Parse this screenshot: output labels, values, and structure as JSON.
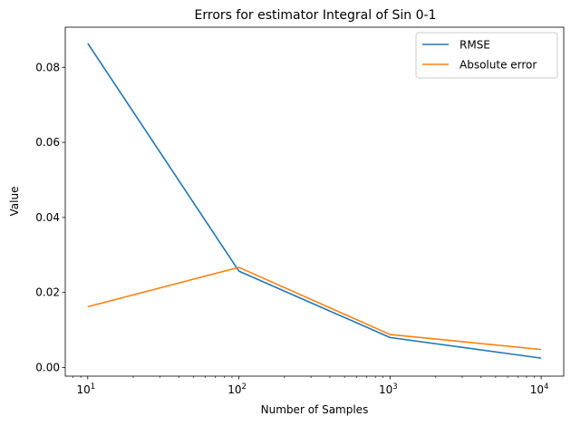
{
  "chart_data": {
    "type": "line",
    "title": "Errors for estimator Integral of Sin 0-1",
    "xlabel": "Number of Samples",
    "ylabel": "Value",
    "x_scale": "log",
    "xlim": [
      7.1,
      14100
    ],
    "ylim": [
      -0.0023,
      0.0907
    ],
    "grid": false,
    "legend_position": "top-right",
    "x": [
      10,
      100,
      1000,
      10000
    ],
    "x_ticks": [
      {
        "value": 10,
        "base": "10",
        "exp": "1"
      },
      {
        "value": 100,
        "base": "10",
        "exp": "2"
      },
      {
        "value": 1000,
        "base": "10",
        "exp": "3"
      },
      {
        "value": 10000,
        "base": "10",
        "exp": "4"
      }
    ],
    "y_ticks": [
      {
        "value": 0.0,
        "label": "0.00"
      },
      {
        "value": 0.02,
        "label": "0.02"
      },
      {
        "value": 0.04,
        "label": "0.04"
      },
      {
        "value": 0.06,
        "label": "0.06"
      },
      {
        "value": 0.08,
        "label": "0.08"
      }
    ],
    "series": [
      {
        "name": "RMSE",
        "color": "#1f77b4",
        "values": [
          0.0864,
          0.0257,
          0.008,
          0.0025
        ]
      },
      {
        "name": "Absolute error",
        "color": "#ff7f0e",
        "values": [
          0.0162,
          0.0267,
          0.0088,
          0.0048
        ]
      }
    ]
  }
}
